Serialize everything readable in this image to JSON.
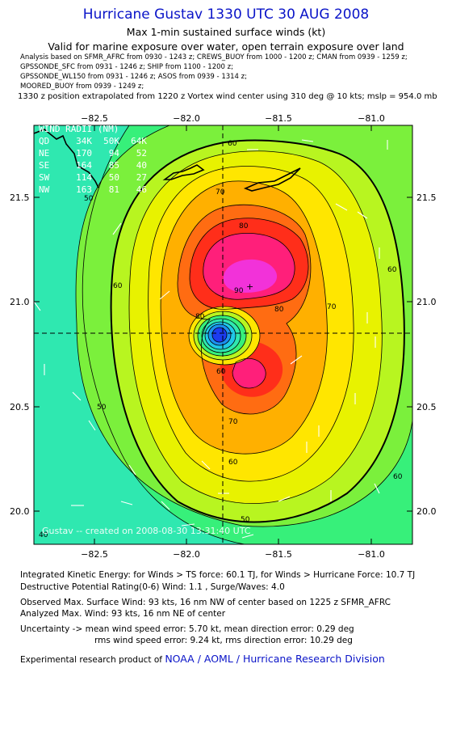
{
  "header": {
    "title": "Hurricane Gustav 1330 UTC 30 AUG 2008",
    "subtitle": "Max 1-min sustained surface winds (kt)",
    "valid": "Valid for marine exposure over water, open terrain exposure over land",
    "analysis_lines": [
      "Analysis based on   SFMR_AFRC from 0930 - 1243 z;  CREWS_BUOY from 1000 - 1200 z;  CMAN from 0939 - 1259 z;",
      "GPSSONDE_SFC from 0931 - 1246 z;  SHIP from 1100 - 1200 z;",
      "GPSSONDE_WL150 from 0931 - 1246 z;  ASOS from 0939 - 1314 z;",
      "MOORED_BUOY from 0939 - 1249 z;"
    ],
    "position_note": "1330 z position extrapolated from 1220 z Vortex wind center using 310 deg @ 10 kts; mslp = 954.0 mb"
  },
  "map": {
    "lon_ticks": [
      "−82.5",
      "−82.0",
      "−81.5",
      "−81.0"
    ],
    "lat_ticks": [
      "21.5",
      "21.0",
      "20.5",
      "20.0"
    ],
    "lon_range": [
      -82.78,
      -80.72
    ],
    "lat_range": [
      19.82,
      21.67
    ],
    "center": {
      "lon": -81.8,
      "lat": 20.85
    },
    "contour_labels": [
      "60",
      "70",
      "80",
      "90",
      "60",
      "50",
      "60",
      "70",
      "80",
      "60",
      "50",
      "60",
      "50",
      "40",
      "60",
      "70",
      "80"
    ],
    "wind_radii": {
      "heading": "WIND RADII (NM)",
      "columns": [
        "QD",
        "34K",
        "50K",
        "64K"
      ],
      "rows": [
        [
          "NE",
          "170",
          "94",
          "52"
        ],
        [
          "SE",
          "164",
          "85",
          "40"
        ],
        [
          "SW",
          "114",
          "50",
          "27"
        ],
        [
          "NW",
          "163",
          "81",
          "46"
        ]
      ]
    },
    "credit": "Gustav -- created on 2008-08-30 13:31:40 UTC"
  },
  "footer": {
    "ike": "Integrated Kinetic Energy:  for Winds > TS force: 60.1 TJ,  for Winds > Hurricane Force: 10.7 TJ",
    "dpr": "Destructive Potential Rating(0-6)   Wind: 1.1 , Surge/Waves: 4.0",
    "observed": "Observed Max. Surface Wind: 93 kts, 16 nm NW of center based on 1225 z SFMR_AFRC",
    "analyzed": "Analyzed Max. Wind: 93 kts, 16 nm NE of center",
    "uncert1": "Uncertainty -> mean wind speed error: 5.70 kt,   mean direction error: 0.29 deg",
    "uncert2": "rms wind speed error: 9.24 kt,   rms direction error: 10.29 deg",
    "product_prefix": "Experimental research product of",
    "product_link": "NOAA / AOML / Hurricane Research Division"
  },
  "colors": {
    "title": "#0a14c8",
    "link": "#0a14c8"
  }
}
